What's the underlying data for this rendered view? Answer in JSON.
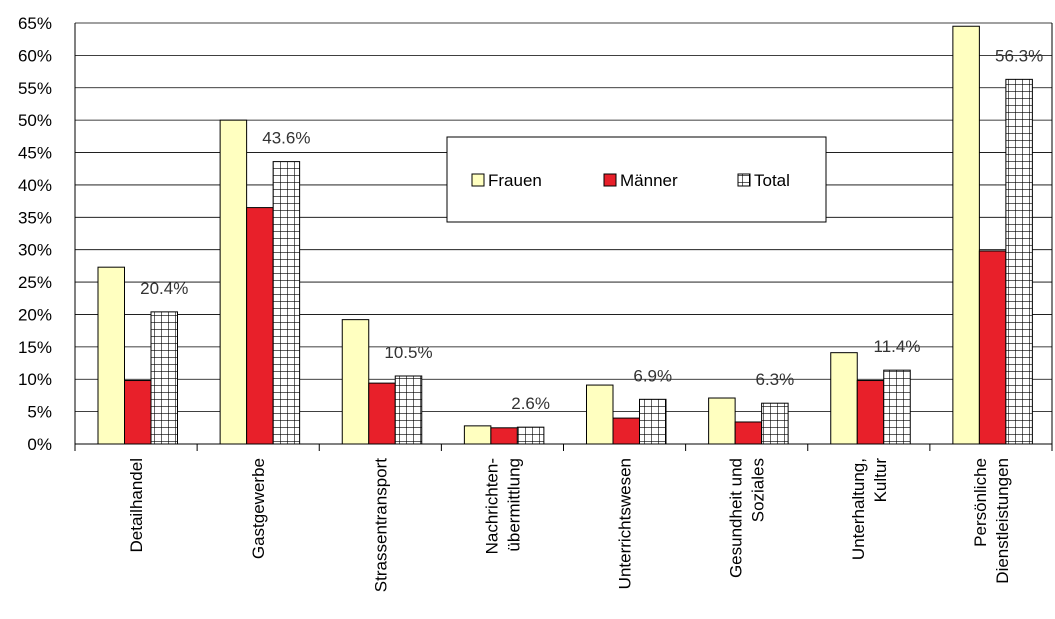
{
  "chart_data": {
    "type": "bar",
    "categories": [
      "Detailhandel",
      "Gastgewerbe",
      "Strassentransport",
      "Nachrichten-\nübermittlung",
      "Unterrichtswesen",
      "Gesundheit und\nSoziales",
      "Unterhaltung,\nKultur",
      "Persönliche\nDienstleistungen"
    ],
    "series": [
      {
        "name": "Frauen",
        "color": "#ffffc0",
        "values": [
          27.3,
          50.0,
          19.2,
          2.8,
          9.1,
          7.1,
          14.1,
          64.5
        ]
      },
      {
        "name": "Männer",
        "color": "#e8202a",
        "values": [
          9.8,
          36.5,
          9.4,
          2.5,
          4.0,
          3.4,
          9.8,
          29.8
        ]
      },
      {
        "name": "Total",
        "color": "pattern-grid",
        "values": [
          20.4,
          43.6,
          10.5,
          2.6,
          6.9,
          6.3,
          11.4,
          56.3
        ],
        "value_labels": [
          "20.4%",
          "43.6%",
          "10.5%",
          "2.6%",
          "6.9%",
          "6.3%",
          "11.4%",
          "56.3%"
        ]
      }
    ],
    "ylim": [
      0,
      65
    ],
    "yticks": [
      {
        "value": 0,
        "label": "0%"
      },
      {
        "value": 5,
        "label": "5%"
      },
      {
        "value": 10,
        "label": "10%"
      },
      {
        "value": 15,
        "label": "15%"
      },
      {
        "value": 20,
        "label": "20%"
      },
      {
        "value": 25,
        "label": "25%"
      },
      {
        "value": 30,
        "label": "30%"
      },
      {
        "value": 35,
        "label": "35%"
      },
      {
        "value": 40,
        "label": "40%"
      },
      {
        "value": 45,
        "label": "45%"
      },
      {
        "value": 50,
        "label": "50%"
      },
      {
        "value": 55,
        "label": "55%"
      },
      {
        "value": 60,
        "label": "60%"
      },
      {
        "value": 65,
        "label": "65%"
      }
    ],
    "grid": true,
    "legend": "center"
  }
}
